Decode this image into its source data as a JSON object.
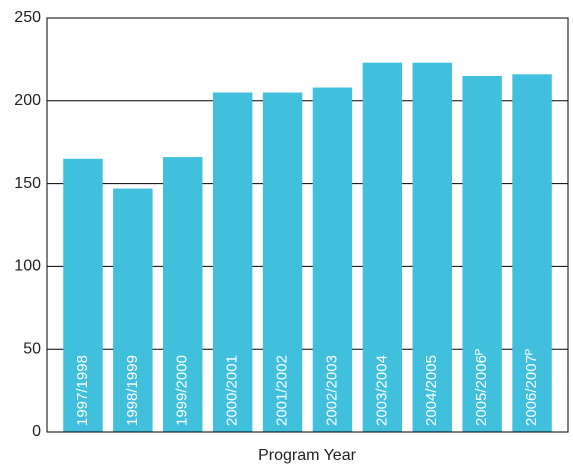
{
  "chart_data": {
    "type": "bar",
    "x_label": "Program Year",
    "categories": [
      "1997/1998",
      "1998/1999",
      "1999/2000",
      "2000/2001",
      "2001/2002",
      "2002/2003",
      "2003/2004",
      "2004/2005",
      "2005/2006ᴾ",
      "2006/2007ᴾ"
    ],
    "values": [
      165,
      147,
      166,
      205,
      205,
      208,
      223,
      223,
      215,
      216
    ],
    "color": "#40c0dc",
    "ylim": [
      0,
      250
    ],
    "yticks": [
      0,
      50,
      100,
      150,
      200,
      250
    ],
    "grid": true
  }
}
